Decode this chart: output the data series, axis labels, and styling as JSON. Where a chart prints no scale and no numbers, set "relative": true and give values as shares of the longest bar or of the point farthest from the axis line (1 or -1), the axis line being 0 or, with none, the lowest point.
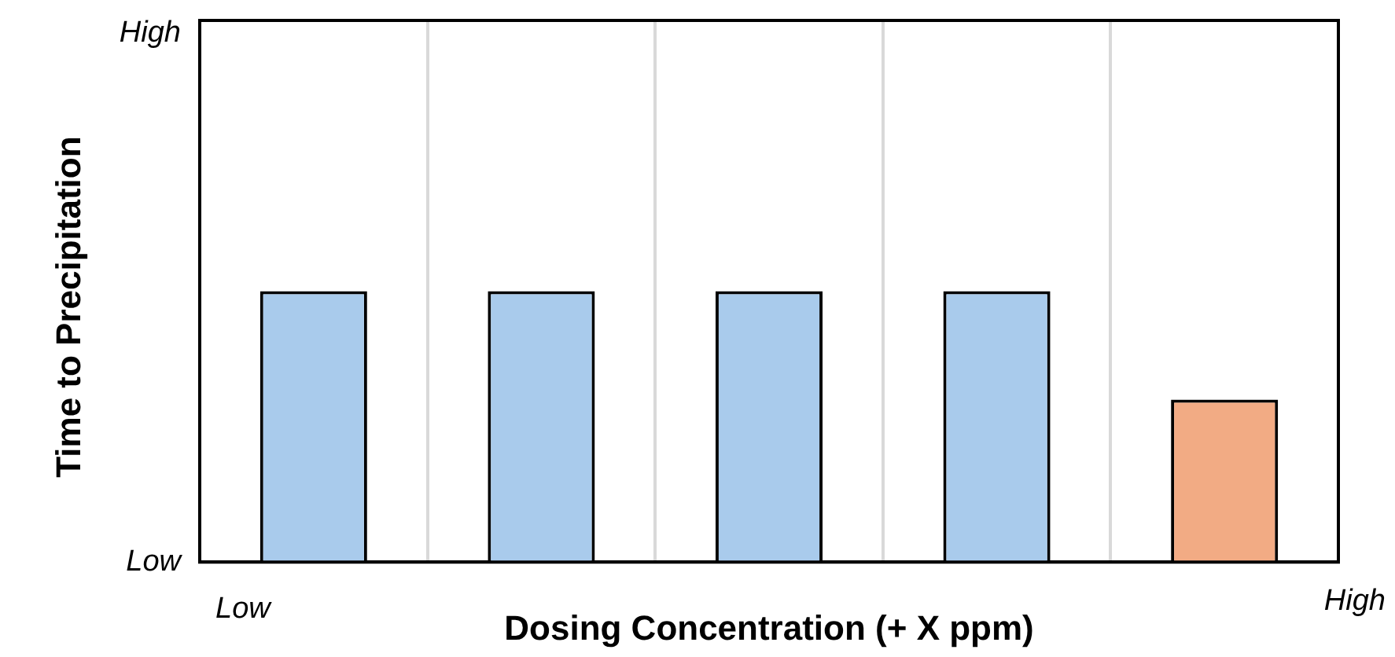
{
  "chart_data": {
    "type": "bar",
    "xlabel": "Dosing Concentration (+ X ppm)",
    "ylabel": "Time to Precipitation",
    "categories": [
      null,
      null,
      null,
      null,
      null
    ],
    "values": [
      1,
      1,
      1,
      1,
      0.6
    ],
    "colors": [
      "#a9cbec",
      "#a9cbec",
      "#a9cbec",
      "#a9cbec",
      "#f2ab84"
    ],
    "relative": true,
    "grid": "x",
    "legend": false,
    "annotations": [
      "High",
      "Low",
      "Low",
      "High"
    ]
  }
}
